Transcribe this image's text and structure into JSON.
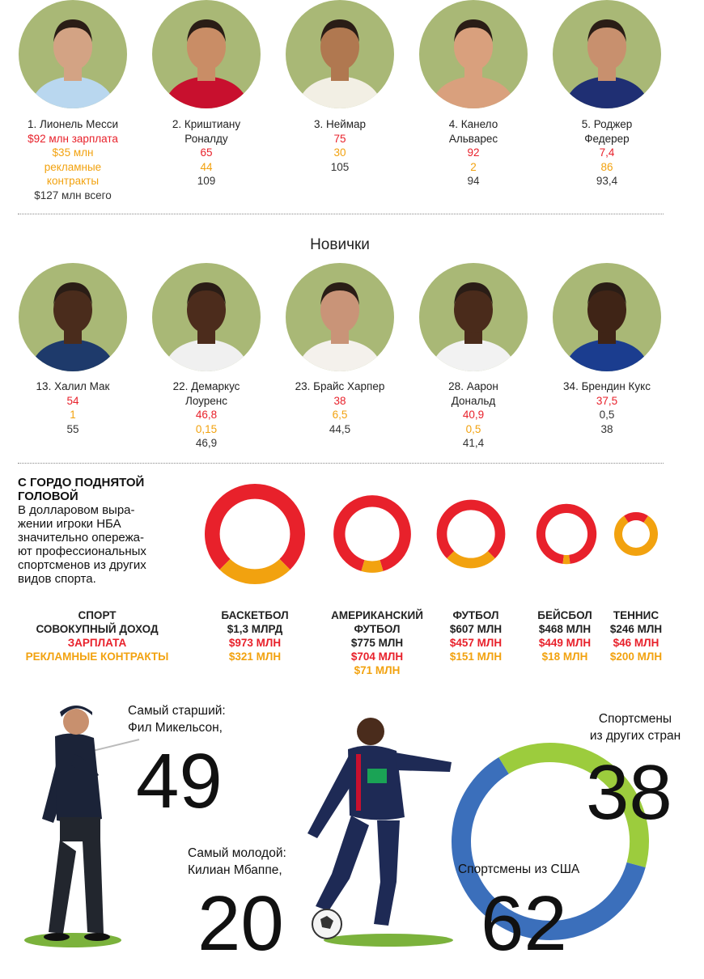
{
  "top_players": [
    {
      "name_lines": [
        "1. Лионель Месси"
      ],
      "salary": "$92 млн зарплата",
      "endorsements_lines": [
        "$35 млн",
        "рекламные",
        "контракты"
      ],
      "total": "$127 млн всего",
      "jersey": "#b9d7ef",
      "skin": "#d3a384"
    },
    {
      "name_lines": [
        "2. Криштиану",
        "Роналду"
      ],
      "salary": "65",
      "endorsements_lines": [
        "44"
      ],
      "total": "109",
      "jersey": "#c8102e",
      "skin": "#c98d66"
    },
    {
      "name_lines": [
        "3. Неймар"
      ],
      "salary": "75",
      "endorsements_lines": [
        "30"
      ],
      "total": "105",
      "jersey": "#f2efe4",
      "skin": "#b07850"
    },
    {
      "name_lines": [
        "4. Канело",
        "Альварес"
      ],
      "salary": "92",
      "endorsements_lines": [
        "2"
      ],
      "total": "94",
      "jersey": "#d9a07d",
      "skin": "#d9a07d"
    },
    {
      "name_lines": [
        "5. Роджер",
        "Федерер"
      ],
      "salary": "7,4",
      "endorsements_lines": [
        "86"
      ],
      "total": "93,4",
      "jersey": "#1f2f73",
      "skin": "#c8906e"
    }
  ],
  "newcomers_title": "Новички",
  "newcomers": [
    {
      "name_lines": [
        "13. Халил Мак"
      ],
      "salary": "54",
      "endorsements": "1",
      "total": "55",
      "jersey": "#1e3a6b",
      "skin": "#4a2c1c"
    },
    {
      "name_lines": [
        "22. Демаркус",
        "Лоуренс"
      ],
      "salary": "46,8",
      "endorsements": "0,15",
      "total": "46,9",
      "jersey": "#f0f0f0",
      "skin": "#4c2c1c"
    },
    {
      "name_lines": [
        "23. Брайс Харпер"
      ],
      "salary": "38",
      "endorsements": "6,5",
      "total": "44,5",
      "jersey": "#f4f1ec",
      "skin": "#c99478"
    },
    {
      "name_lines": [
        "28. Аарон",
        "Дональд"
      ],
      "salary": "40,9",
      "endorsements": "0,5",
      "total": "41,4",
      "jersey": "#f2f2f2",
      "skin": "#4a2b1b"
    },
    {
      "name_lines": [
        "34. Брендин Кукс"
      ],
      "salary": "37,5",
      "endorsements": "0,5",
      "total": "38",
      "jersey": "#1b3d8f",
      "skin": "#3f2416",
      "endorse_gray": true
    }
  ],
  "head_section": {
    "title_lines": [
      "С ГОРДО ПОДНЯТОЙ",
      "ГОЛОВОЙ"
    ],
    "desc_lines": [
      "В долларовом выра-",
      "жении игроки НБА",
      "значительно опережа-",
      "ют профессиональных",
      "спортсменов из других",
      "видов спорта."
    ]
  },
  "legend": {
    "sport": "Спорт",
    "total": "Совокупный доход",
    "salary": "Зарплата",
    "endorsements": "Рекламные контракты"
  },
  "chart_data": [
    {
      "type": "pie",
      "title": "",
      "categories": [
        "Баскетбол",
        "Американский футбол",
        "Футбол",
        "Бейсбол",
        "Теннис"
      ],
      "category_label_lines": [
        [
          "Баскетбол"
        ],
        [
          "Американский",
          "футбол"
        ],
        [
          "Футбол"
        ],
        [
          "Бейсбол"
        ],
        [
          "Теннис"
        ]
      ],
      "totals_usd_mln": [
        1300,
        775,
        607,
        468,
        246
      ],
      "total_labels": [
        "$1,3 млрд",
        "$775 млн",
        "$607 млн",
        "$468 млн",
        "$246 млн"
      ],
      "series": [
        {
          "name": "Зарплата",
          "values": [
            973,
            704,
            457,
            449,
            46
          ],
          "labels": [
            "$973 млн",
            "$704 млн",
            "$457 млн",
            "$449 млн",
            "$46 млн"
          ]
        },
        {
          "name": "Рекламные контракты",
          "values": [
            321,
            71,
            151,
            18,
            200
          ],
          "labels": [
            "$321 млн",
            "$71 млн",
            "$151 млн",
            "$18 млн",
            "$200 млн"
          ]
        }
      ],
      "colors": {
        "salary": "#e8212b",
        "endorsements": "#f2a20f"
      }
    },
    {
      "type": "pie",
      "title": "",
      "categories": [
        "Спортсмены из США",
        "Спортсмены из других стран"
      ],
      "values": [
        62,
        38
      ],
      "colors": [
        "#3b6fbb",
        "#9ccc3d"
      ]
    }
  ],
  "oldest": {
    "caption_lines": [
      "Самый старший:",
      "Фил Микельсон,"
    ],
    "age": "49"
  },
  "youngest": {
    "caption_lines": [
      "Самый молодой:",
      "Килиан Мбаппе,"
    ],
    "age": "20"
  },
  "origin": {
    "foreign_label_lines": [
      "Спортсмены",
      "из других стран"
    ],
    "foreign_value": "38",
    "usa_label": "Спортсмены из США",
    "usa_value": "62"
  }
}
